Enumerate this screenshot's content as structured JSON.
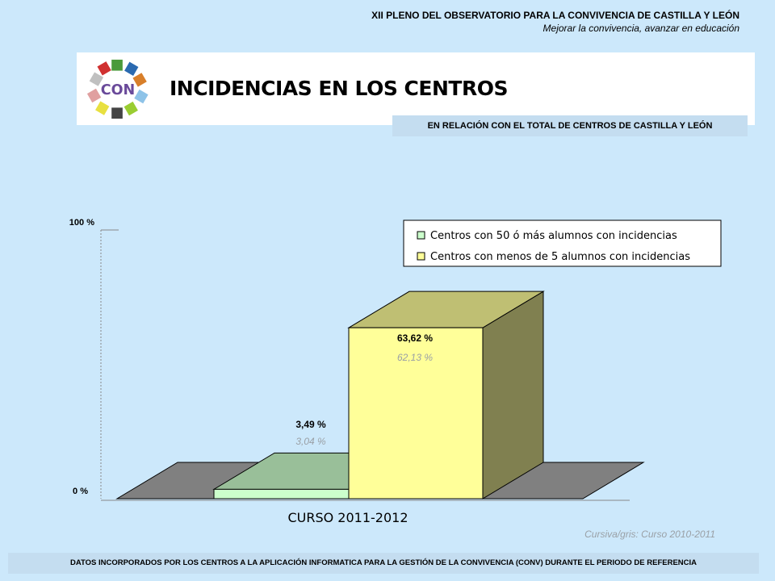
{
  "header": {
    "title": "XII PLENO DEL OBSERVATORIO PARA LA CONVIVENCIA DE CASTILLA Y LEÓN",
    "subtitle": "Mejorar la convivencia, avanzar en educación"
  },
  "banner": {
    "logo_text": "CON",
    "title": "INCIDENCIAS EN LOS CENTROS"
  },
  "subtitle_box": "EN RELACIÓN CON EL TOTAL DE CENTROS DE CASTILLA Y LEÓN",
  "chart_data": {
    "type": "bar",
    "categories": [
      "CURSO 2011-2012"
    ],
    "series": [
      {
        "name": "Centros con 50 ó más alumnos con incidencias",
        "value": 3.49,
        "label": "3,49 %",
        "previous_label": "3,04 %",
        "color": "#ccffcc",
        "top_color": "#99bf99"
      },
      {
        "name": "Centros con menos de 5 alumnos con incidencias",
        "value": 63.62,
        "label": "63,62 %",
        "previous_label": "62,13 %",
        "color": "#ffff99",
        "top_color": "#bfbf73",
        "side_color": "#808050"
      }
    ],
    "ylim": [
      0,
      100
    ],
    "y_ticks": [
      "0 %",
      "100 %"
    ],
    "legend_position": "top-right",
    "floor_color": "#808080"
  },
  "footnote": "Cursiva/gris: Curso 2010-2011",
  "footer": "DATOS INCORPORADOS POR LOS CENTROS A LA APLICACIÓN INFORMATICA PARA LA GESTIÓN DE LA CONVIVENCIA (CONV) DURANTE EL PERIODO DE REFERENCIA"
}
